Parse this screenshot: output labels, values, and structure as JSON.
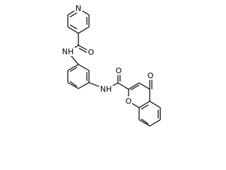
{
  "atom_labels": [
    "N",
    "O",
    "NH",
    "NH",
    "O",
    "O",
    "O"
  ]
}
